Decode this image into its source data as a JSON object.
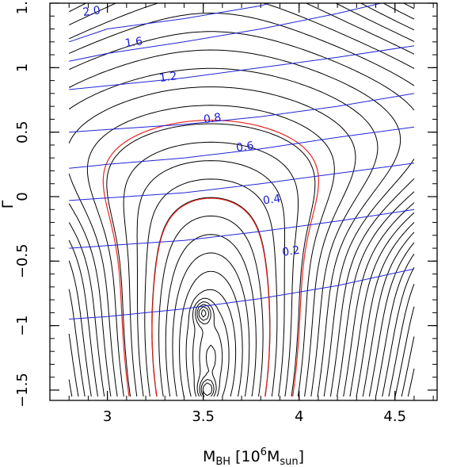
{
  "chart_data": {
    "type": "contour",
    "title": "",
    "xlabel": {
      "main": "M",
      "sub": "BH",
      "open": " [10",
      "sup": "6",
      "mid": "M",
      "sub2": "sun",
      "close": "]"
    },
    "ylabel": "Γ",
    "xlim": [
      2.7,
      4.72
    ],
    "ylim": [
      -1.58,
      1.5
    ],
    "x_ticks": [
      3,
      3.5,
      4,
      4.5
    ],
    "x_tick_labels": [
      "3",
      "3.5",
      "4",
      "4.5"
    ],
    "y_ticks": [
      -1.5,
      -1,
      -0.5,
      0,
      0.5,
      1,
      1.5
    ],
    "y_tick_labels": [
      "−1.5",
      "−1",
      "−0.5",
      "0",
      "0.5",
      "1",
      "1.5"
    ],
    "data_extent": {
      "x": [
        2.8,
        4.6
      ],
      "y": [
        -1.55,
        1.5
      ]
    },
    "colors": {
      "black_contours": "#000000",
      "confidence_contours": "#e8261e",
      "blue_contours": "#2323d6",
      "contour_labels": "#1a1ad8"
    },
    "black_contours": {
      "description_levels": 34,
      "min_location": {
        "x": 3.54,
        "y": -1.25
      },
      "secondary_minima": [
        {
          "x": 3.5,
          "y": -0.9
        },
        {
          "x": 3.52,
          "y": -1.5
        }
      ]
    },
    "confidence_contours": {
      "style": "dashed",
      "count": 2
    },
    "blue_contours": [
      {
        "label": "2.0",
        "x": [
          2.8,
          3.0,
          3.4,
          3.8,
          4.1,
          4.35,
          4.6
        ],
        "y": [
          1.2,
          1.3,
          1.38,
          1.48,
          1.62,
          1.78,
          1.95
        ]
      },
      {
        "label": "1.6",
        "x": [
          2.8,
          3.0,
          3.4,
          3.8,
          4.2,
          4.6
        ],
        "y": [
          1.05,
          1.11,
          1.2,
          1.3,
          1.42,
          1.56
        ]
      },
      {
        "label": "1.2",
        "x": [
          2.8,
          3.0,
          3.4,
          3.8,
          4.2,
          4.6
        ],
        "y": [
          0.83,
          0.86,
          0.92,
          1.0,
          1.08,
          1.17
        ]
      },
      {
        "label": "0.8",
        "x": [
          2.8,
          3.0,
          3.4,
          3.8,
          4.2,
          4.6
        ],
        "y": [
          0.5,
          0.52,
          0.56,
          0.62,
          0.7,
          0.8
        ]
      },
      {
        "label": "0.6",
        "x": [
          2.8,
          3.0,
          3.4,
          3.8,
          4.2,
          4.6
        ],
        "y": [
          0.22,
          0.25,
          0.3,
          0.37,
          0.46,
          0.54
        ]
      },
      {
        "label": "0.4",
        "x": [
          2.8,
          3.0,
          3.4,
          3.8,
          4.2,
          4.6
        ],
        "y": [
          -0.03,
          -0.01,
          0.03,
          0.1,
          0.18,
          0.26
        ]
      },
      {
        "label": "0.2",
        "x": [
          2.8,
          3.0,
          3.4,
          3.8,
          4.2,
          4.6
        ],
        "y": [
          -0.4,
          -0.38,
          -0.34,
          -0.27,
          -0.19,
          -0.1
        ]
      },
      {
        "label": "",
        "x": [
          2.8,
          3.0,
          3.4,
          3.8,
          4.2,
          4.6
        ],
        "y": [
          -0.95,
          -0.93,
          -0.87,
          -0.79,
          -0.69,
          -0.56
        ]
      }
    ],
    "blue_contour_labels": [
      {
        "text": "2.0",
        "x": 2.92,
        "y": 1.41
      },
      {
        "text": "1.6",
        "x": 3.14,
        "y": 1.17
      },
      {
        "text": "1.2",
        "x": 3.32,
        "y": 0.9
      },
      {
        "text": "0.8",
        "x": 3.55,
        "y": 0.58
      },
      {
        "text": "0.6",
        "x": 3.72,
        "y": 0.36
      },
      {
        "text": "0.4",
        "x": 3.86,
        "y": -0.05
      },
      {
        "text": "0.2",
        "x": 3.96,
        "y": -0.45
      }
    ]
  }
}
